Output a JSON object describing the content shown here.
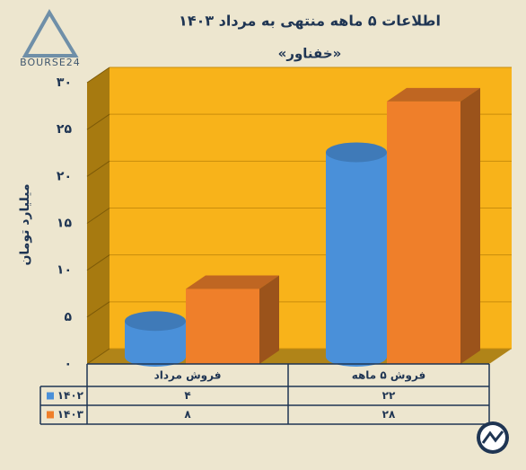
{
  "logo": "BOURSE24",
  "chart_data": {
    "type": "bar3d",
    "title": "اطلاعات ۵ ماهه منتهی به مرداد ۱۴۰۳",
    "subtitle": "«خفناور»",
    "y_label": "میلیارد تومان",
    "categories": [
      "فروش مرداد",
      "فروش ۵ ماهه"
    ],
    "series": [
      {
        "name": "۱۴۰۲",
        "color": "#4a90d9",
        "shape": "cylinder",
        "values": [
          4,
          22
        ],
        "value_labels": [
          "۴",
          "۲۲"
        ]
      },
      {
        "name": "۱۴۰۳",
        "color": "#ef7f2a",
        "shape": "box",
        "values": [
          8,
          28
        ],
        "value_labels": [
          "۸",
          "۲۸"
        ]
      }
    ],
    "ylim": [
      0,
      30
    ],
    "yticks": [
      {
        "value": 0,
        "label": "۰"
      },
      {
        "value": 5,
        "label": "۵"
      },
      {
        "value": 10,
        "label": "۱۰"
      },
      {
        "value": 15,
        "label": "۱۵"
      },
      {
        "value": 20,
        "label": "۲۰"
      },
      {
        "value": 25,
        "label": "۲۵"
      },
      {
        "value": 30,
        "label": "۳۰"
      }
    ],
    "grid": true
  }
}
